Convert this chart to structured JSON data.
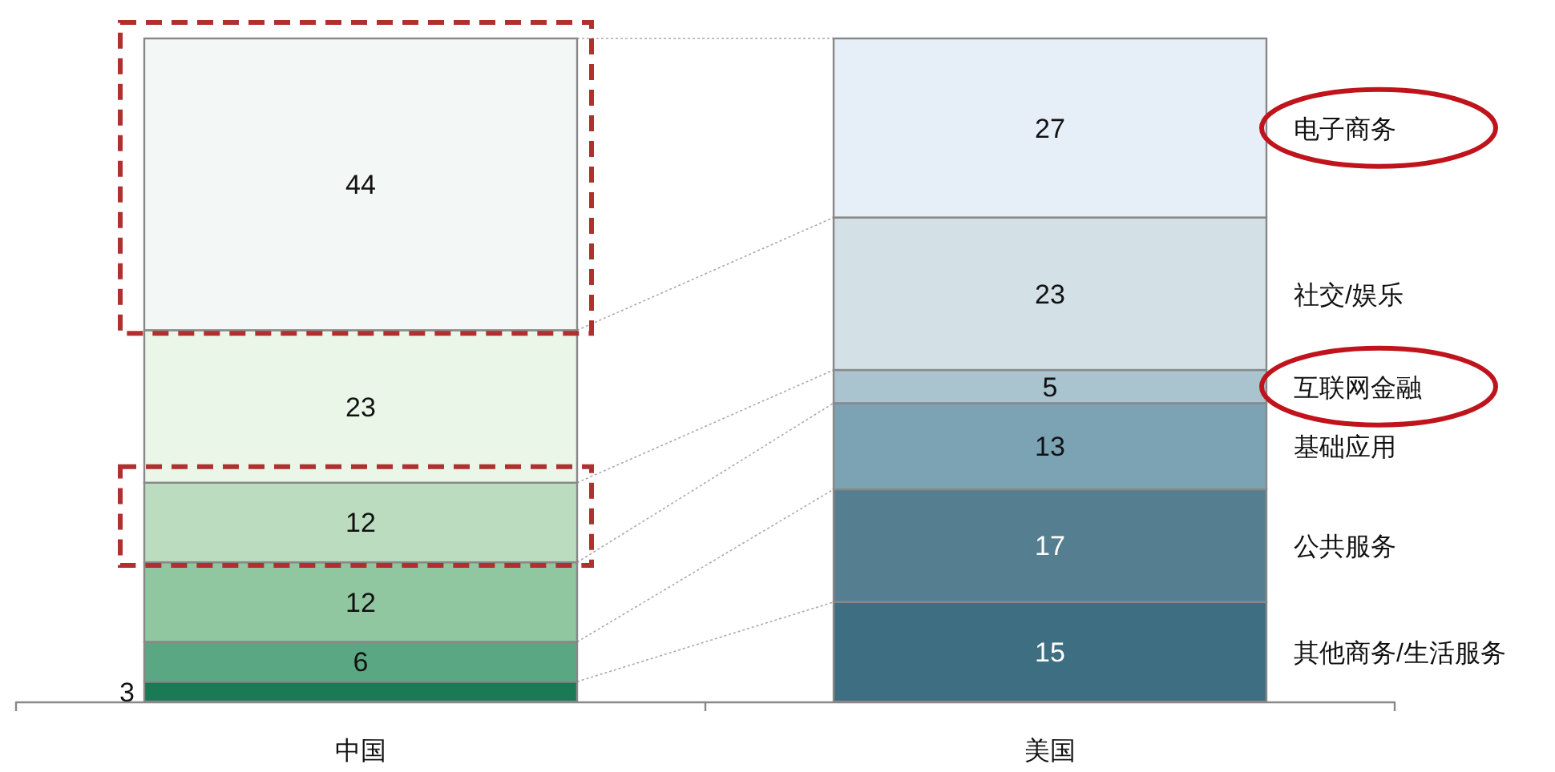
{
  "chart_data": {
    "type": "bar",
    "stacked": true,
    "data_labels": true,
    "legend": false,
    "categories": [
      "中国",
      "美国"
    ],
    "series": [
      {
        "name": "其他商务/生活服务",
        "colors": [
          "#1a7a55",
          "#3e6e82"
        ],
        "values": [
          3,
          15
        ]
      },
      {
        "name": "公共服务",
        "colors": [
          "#5aa883",
          "#557f90"
        ],
        "values": [
          6,
          17
        ]
      },
      {
        "name": "基础应用",
        "colors": [
          "#90c6a0",
          "#7ba3b4"
        ],
        "values": [
          12,
          13
        ]
      },
      {
        "name": "互联网金融",
        "colors": [
          "#bcdcbf",
          "#a9c3cf"
        ],
        "values": [
          12,
          5
        ]
      },
      {
        "name": "社交/娱乐",
        "colors": [
          "#eaf6e8",
          "#d3e0e6"
        ],
        "values": [
          23,
          23
        ]
      },
      {
        "name": "电子商务",
        "colors": [
          "#f3f7f5",
          "#e6eef8"
        ],
        "values": [
          44,
          27
        ]
      }
    ]
  }
}
